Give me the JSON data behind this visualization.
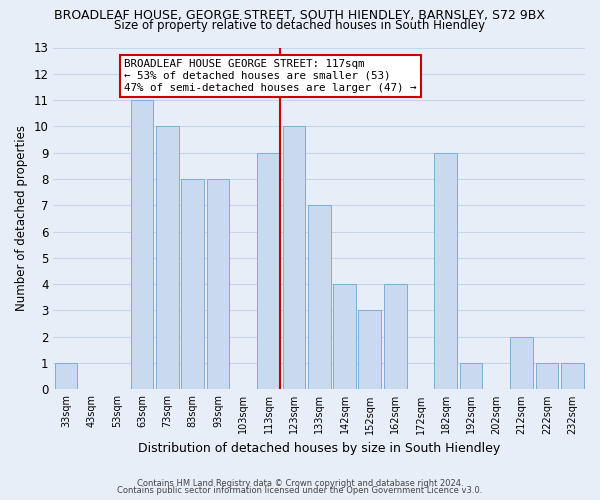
{
  "title_main": "BROADLEAF HOUSE, GEORGE STREET, SOUTH HIENDLEY, BARNSLEY, S72 9BX",
  "title_sub": "Size of property relative to detached houses in South Hiendley",
  "xlabel": "Distribution of detached houses by size in South Hiendley",
  "ylabel": "Number of detached properties",
  "bar_labels": [
    "33sqm",
    "43sqm",
    "53sqm",
    "63sqm",
    "73sqm",
    "83sqm",
    "93sqm",
    "103sqm",
    "113sqm",
    "123sqm",
    "133sqm",
    "142sqm",
    "152sqm",
    "162sqm",
    "172sqm",
    "182sqm",
    "192sqm",
    "202sqm",
    "212sqm",
    "222sqm",
    "232sqm"
  ],
  "bar_values": [
    1,
    0,
    0,
    11,
    10,
    8,
    8,
    0,
    9,
    10,
    7,
    4,
    3,
    4,
    0,
    9,
    1,
    0,
    2,
    1,
    1
  ],
  "bar_color": "#c9daf0",
  "bar_edge_color": "#7bafd4",
  "highlight_line_color": "#cc0000",
  "annotation_line1": "BROADLEAF HOUSE GEORGE STREET: 117sqm",
  "annotation_line2": "← 53% of detached houses are smaller (53)",
  "annotation_line3": "47% of semi-detached houses are larger (47) →",
  "annotation_box_color": "#ffffff",
  "annotation_box_edge_color": "#cc0000",
  "ylim": [
    0,
    13
  ],
  "yticks": [
    0,
    1,
    2,
    3,
    4,
    5,
    6,
    7,
    8,
    9,
    10,
    11,
    12,
    13
  ],
  "footer_line1": "Contains HM Land Registry data © Crown copyright and database right 2024.",
  "footer_line2": "Contains public sector information licensed under the Open Government Licence v3.0.",
  "bg_color": "#e8eef8",
  "grid_color": "#c8d4e8",
  "title_fontsize": 9,
  "subtitle_fontsize": 8.5
}
